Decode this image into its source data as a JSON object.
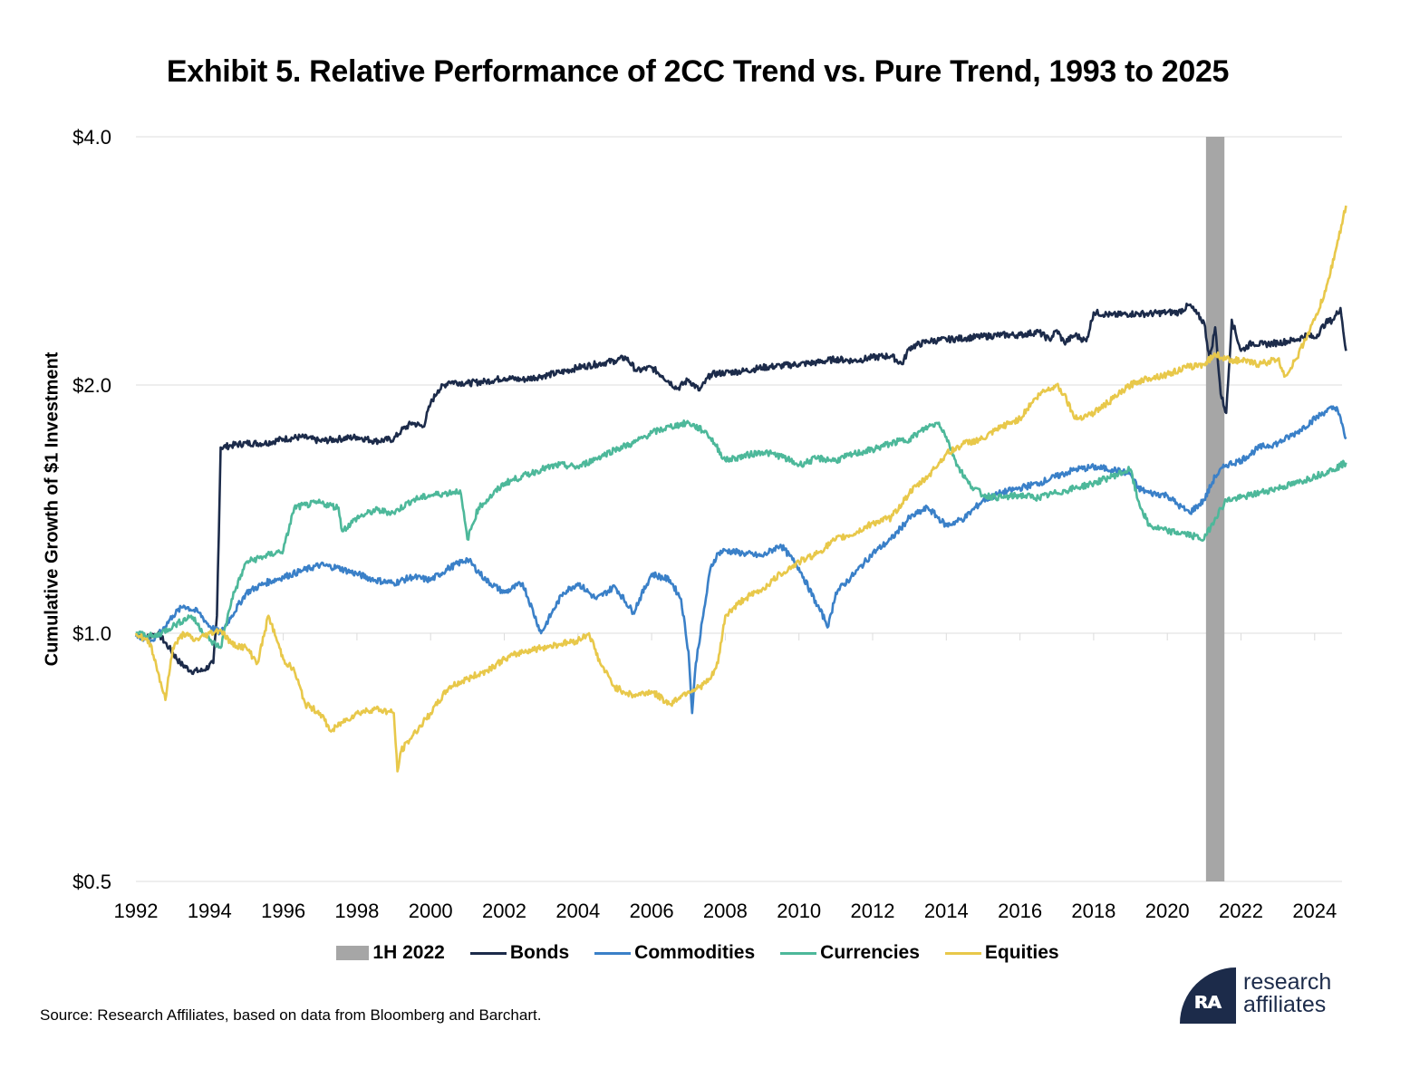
{
  "header": {
    "title": "Exhibit 5. Relative Performance of 2CC Trend vs. Pure Trend, 1993 to 2025"
  },
  "footer": {
    "source": "Source: Research Affiliates, based on data from Bloomberg and Barchart."
  },
  "logo": {
    "mark": "ʀᴀ",
    "line1": "research",
    "line2": "affiliates"
  },
  "colors": {
    "bonds": "#1c2b4a",
    "commodities": "#3a80c8",
    "currencies": "#4db89a",
    "equities": "#e8c84a",
    "shade": "#a6a6a6",
    "grid": "#dcdcdc"
  },
  "chart_data": {
    "type": "line",
    "title": "Exhibit 5. Relative Performance of 2CC Trend vs. Pure Trend, 1993 to 2025",
    "ylabel": "Cumulative Growth of $1 Investment",
    "xlabel": "",
    "yscale": "log",
    "ylim": [
      0.5,
      4.0
    ],
    "xlim": [
      1992,
      2024.85
    ],
    "yticks": [
      {
        "v": 0.5,
        "label": "$0.5"
      },
      {
        "v": 1.0,
        "label": "$1.0"
      },
      {
        "v": 2.0,
        "label": "$2.0"
      },
      {
        "v": 4.0,
        "label": "$4.0"
      }
    ],
    "xticks": [
      "1992",
      "1994",
      "1996",
      "1998",
      "2000",
      "2002",
      "2004",
      "2006",
      "2008",
      "2010",
      "2012",
      "2014",
      "2016",
      "2018",
      "2020",
      "2022",
      "2024"
    ],
    "grid": "horizontal",
    "legend_position": "bottom",
    "shade": {
      "label": "1H 2022",
      "x0": 2021.05,
      "x1": 2021.55
    },
    "series": [
      {
        "name": "Bonds",
        "color": "#1c2b4a",
        "x": [
          1992,
          1992.3,
          1992.6,
          1992.9,
          1993.2,
          1993.5,
          1993.8,
          1994.1,
          1994.2,
          1994.3,
          1994.6,
          1995.0,
          1995.5,
          1996.0,
          1996.5,
          1997.0,
          1997.5,
          1998.0,
          1998.5,
          1999.0,
          1999.2,
          1999.5,
          1999.8,
          2000.0,
          2000.2,
          2000.5,
          2001.0,
          2001.5,
          2002.0,
          2002.5,
          2003.0,
          2003.5,
          2004.0,
          2004.5,
          2005.0,
          2005.3,
          2005.6,
          2006.0,
          2006.3,
          2006.7,
          2007.0,
          2007.3,
          2007.6,
          2008.0,
          2008.5,
          2009.0,
          2009.5,
          2010.0,
          2010.5,
          2011.0,
          2011.5,
          2012.0,
          2012.5,
          2012.8,
          2013.0,
          2013.5,
          2014.0,
          2014.5,
          2015.0,
          2015.5,
          2016.0,
          2016.5,
          2016.8,
          2017.0,
          2017.2,
          2017.5,
          2017.8,
          2018.0,
          2018.5,
          2019.0,
          2019.5,
          2020.0,
          2020.3,
          2020.6,
          2020.8,
          2021.0,
          2021.15,
          2021.3,
          2021.45,
          2021.6,
          2021.75,
          2022.0,
          2022.3,
          2022.6,
          2023.0,
          2023.5,
          2023.8,
          2024.0,
          2024.3,
          2024.5,
          2024.7,
          2024.85
        ],
        "values": [
          1.0,
          0.99,
          1.0,
          0.96,
          0.92,
          0.9,
          0.9,
          0.92,
          1.05,
          1.68,
          1.69,
          1.7,
          1.7,
          1.72,
          1.73,
          1.71,
          1.72,
          1.73,
          1.71,
          1.72,
          1.76,
          1.8,
          1.78,
          1.9,
          1.97,
          2.02,
          2.01,
          2.02,
          2.04,
          2.03,
          2.05,
          2.07,
          2.1,
          2.12,
          2.14,
          2.16,
          2.08,
          2.1,
          2.05,
          1.98,
          2.03,
          1.97,
          2.06,
          2.07,
          2.08,
          2.1,
          2.11,
          2.12,
          2.13,
          2.15,
          2.14,
          2.16,
          2.17,
          2.12,
          2.22,
          2.26,
          2.27,
          2.28,
          2.29,
          2.3,
          2.3,
          2.32,
          2.27,
          2.33,
          2.25,
          2.3,
          2.26,
          2.45,
          2.43,
          2.44,
          2.44,
          2.45,
          2.45,
          2.5,
          2.44,
          2.38,
          2.15,
          2.35,
          1.95,
          1.85,
          2.4,
          2.2,
          2.25,
          2.24,
          2.25,
          2.27,
          2.3,
          2.28,
          2.38,
          2.4,
          2.48,
          2.2
        ]
      },
      {
        "name": "Commodities",
        "color": "#3a80c8",
        "x": [
          1992,
          1992.5,
          1993.0,
          1993.3,
          1993.7,
          1994.0,
          1994.3,
          1994.6,
          1995.0,
          1995.5,
          1996.0,
          1996.5,
          1997.0,
          1997.5,
          1998.0,
          1998.5,
          1999.0,
          1999.5,
          2000.0,
          2000.5,
          2001.0,
          2001.5,
          2002.0,
          2002.5,
          2003.0,
          2003.3,
          2003.6,
          2004.0,
          2004.5,
          2005.0,
          2005.5,
          2006.0,
          2006.5,
          2006.8,
          2007.0,
          2007.1,
          2007.2,
          2007.4,
          2007.6,
          2007.8,
          2008.0,
          2008.5,
          2009.0,
          2009.5,
          2010.0,
          2010.5,
          2010.8,
          2011.0,
          2011.5,
          2012.0,
          2012.5,
          2013.0,
          2013.5,
          2014.0,
          2014.5,
          2015.0,
          2015.5,
          2016.0,
          2016.5,
          2017.0,
          2017.5,
          2018.0,
          2018.5,
          2019.0,
          2019.2,
          2019.5,
          2020.0,
          2020.3,
          2020.6,
          2021.0,
          2021.3,
          2021.6,
          2022.0,
          2022.5,
          2023.0,
          2023.5,
          2024.0,
          2024.3,
          2024.6,
          2024.85
        ],
        "values": [
          0.99,
          0.98,
          1.05,
          1.08,
          1.06,
          1.02,
          1.0,
          1.05,
          1.12,
          1.15,
          1.17,
          1.19,
          1.21,
          1.2,
          1.18,
          1.16,
          1.15,
          1.17,
          1.16,
          1.2,
          1.23,
          1.16,
          1.12,
          1.15,
          1.0,
          1.06,
          1.12,
          1.15,
          1.1,
          1.14,
          1.06,
          1.18,
          1.16,
          1.1,
          0.95,
          0.8,
          0.92,
          1.05,
          1.2,
          1.25,
          1.26,
          1.25,
          1.24,
          1.28,
          1.2,
          1.08,
          1.02,
          1.12,
          1.18,
          1.25,
          1.3,
          1.38,
          1.42,
          1.35,
          1.38,
          1.45,
          1.48,
          1.5,
          1.52,
          1.55,
          1.58,
          1.59,
          1.58,
          1.56,
          1.5,
          1.48,
          1.47,
          1.43,
          1.4,
          1.45,
          1.55,
          1.6,
          1.62,
          1.68,
          1.7,
          1.75,
          1.82,
          1.86,
          1.88,
          1.72
        ]
      },
      {
        "name": "Currencies",
        "color": "#4db89a",
        "x": [
          1992,
          1992.5,
          1993.0,
          1993.5,
          1994.0,
          1994.3,
          1994.6,
          1995.0,
          1995.5,
          1996.0,
          1996.3,
          1996.6,
          1997.0,
          1997.5,
          1997.6,
          1998.0,
          1998.5,
          1999.0,
          1999.5,
          2000.0,
          2000.5,
          2000.8,
          2001.0,
          2001.3,
          2001.6,
          2002.0,
          2002.5,
          2003.0,
          2003.5,
          2004.0,
          2004.5,
          2005.0,
          2005.5,
          2006.0,
          2006.5,
          2007.0,
          2007.5,
          2007.7,
          2008.0,
          2008.5,
          2009.0,
          2009.5,
          2010.0,
          2010.5,
          2011.0,
          2011.5,
          2012.0,
          2012.5,
          2013.0,
          2013.5,
          2013.8,
          2014.0,
          2014.3,
          2014.6,
          2015.0,
          2015.5,
          2016.0,
          2016.5,
          2017.0,
          2017.5,
          2018.0,
          2018.5,
          2019.0,
          2019.2,
          2019.5,
          2020.0,
          2020.5,
          2021.0,
          2021.3,
          2021.6,
          2022.0,
          2022.5,
          2023.0,
          2023.5,
          2024.0,
          2024.5,
          2024.85
        ],
        "values": [
          1.0,
          0.99,
          1.02,
          1.05,
          0.98,
          0.96,
          1.1,
          1.22,
          1.24,
          1.26,
          1.42,
          1.43,
          1.44,
          1.42,
          1.33,
          1.38,
          1.41,
          1.4,
          1.45,
          1.47,
          1.48,
          1.49,
          1.3,
          1.42,
          1.46,
          1.52,
          1.55,
          1.58,
          1.6,
          1.59,
          1.63,
          1.67,
          1.7,
          1.75,
          1.78,
          1.8,
          1.75,
          1.7,
          1.62,
          1.64,
          1.66,
          1.64,
          1.6,
          1.63,
          1.62,
          1.65,
          1.67,
          1.7,
          1.72,
          1.78,
          1.8,
          1.73,
          1.6,
          1.52,
          1.47,
          1.46,
          1.47,
          1.46,
          1.48,
          1.5,
          1.52,
          1.55,
          1.58,
          1.45,
          1.35,
          1.33,
          1.32,
          1.3,
          1.38,
          1.45,
          1.46,
          1.48,
          1.5,
          1.52,
          1.55,
          1.58,
          1.61
        ]
      },
      {
        "name": "Equities",
        "color": "#e8c84a",
        "x": [
          1992,
          1992.4,
          1992.8,
          1993.0,
          1993.3,
          1993.6,
          1994.0,
          1994.3,
          1994.6,
          1995.0,
          1995.3,
          1995.6,
          1996.0,
          1996.3,
          1996.6,
          1997.0,
          1997.3,
          1997.6,
          1998.0,
          1998.5,
          1999.0,
          1999.1,
          1999.2,
          1999.5,
          2000.0,
          2000.5,
          2001.0,
          2001.5,
          2002.0,
          2002.5,
          2003.0,
          2003.5,
          2004.0,
          2004.3,
          2004.6,
          2005.0,
          2005.5,
          2006.0,
          2006.5,
          2006.8,
          2007.0,
          2007.3,
          2007.6,
          2007.8,
          2008.0,
          2008.5,
          2009.0,
          2009.5,
          2010.0,
          2010.5,
          2011.0,
          2011.5,
          2012.0,
          2012.5,
          2013.0,
          2013.5,
          2014.0,
          2014.5,
          2015.0,
          2015.5,
          2016.0,
          2016.3,
          2016.6,
          2017.0,
          2017.2,
          2017.5,
          2018.0,
          2018.5,
          2019.0,
          2019.2,
          2019.5,
          2020.0,
          2020.5,
          2021.0,
          2021.3,
          2021.6,
          2022.0,
          2022.5,
          2023.0,
          2023.2,
          2023.5,
          2023.8,
          2024.0,
          2024.3,
          2024.6,
          2024.85
        ],
        "values": [
          1.0,
          0.97,
          0.83,
          0.96,
          1.0,
          0.98,
          1.0,
          1.01,
          0.97,
          0.96,
          0.92,
          1.05,
          0.93,
          0.9,
          0.82,
          0.8,
          0.76,
          0.78,
          0.8,
          0.81,
          0.8,
          0.68,
          0.72,
          0.75,
          0.8,
          0.86,
          0.88,
          0.9,
          0.93,
          0.95,
          0.96,
          0.97,
          0.98,
          1.0,
          0.92,
          0.86,
          0.84,
          0.85,
          0.82,
          0.84,
          0.85,
          0.86,
          0.88,
          0.92,
          1.05,
          1.1,
          1.13,
          1.18,
          1.22,
          1.25,
          1.3,
          1.32,
          1.36,
          1.38,
          1.48,
          1.55,
          1.65,
          1.7,
          1.72,
          1.78,
          1.82,
          1.9,
          1.96,
          2.0,
          1.95,
          1.82,
          1.85,
          1.92,
          2.0,
          2.02,
          2.04,
          2.06,
          2.1,
          2.12,
          2.18,
          2.15,
          2.14,
          2.12,
          2.15,
          2.05,
          2.15,
          2.3,
          2.4,
          2.6,
          2.95,
          3.3
        ]
      }
    ]
  }
}
